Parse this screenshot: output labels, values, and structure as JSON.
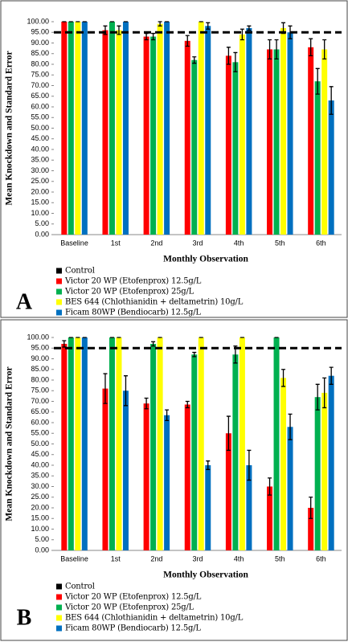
{
  "chart_data": [
    {
      "type": "bar",
      "panel_label": "A",
      "x_label": "Monthly Observation",
      "y_label": "Mean Knockdown and Standard Error",
      "categories": [
        "Baseline",
        "1st",
        "2nd",
        "3rd",
        "4th",
        "5th",
        "6th"
      ],
      "ylim": [
        0,
        100
      ],
      "yticks": [
        {
          "value": 0,
          "label": "0.00"
        },
        {
          "value": 5,
          "label": "5.00"
        },
        {
          "value": 10,
          "label": "10.00"
        },
        {
          "value": 15,
          "label": "15.00"
        },
        {
          "value": 20,
          "label": "20.00"
        },
        {
          "value": 25,
          "label": "25.00"
        },
        {
          "value": 30,
          "label": "30.00"
        },
        {
          "value": 35,
          "label": "35.00"
        },
        {
          "value": 40,
          "label": "40.00"
        },
        {
          "value": 45,
          "label": "45.00"
        },
        {
          "value": 50,
          "label": "50.00"
        },
        {
          "value": 55,
          "label": "55.00"
        },
        {
          "value": 60,
          "label": "60.00"
        },
        {
          "value": 65,
          "label": "65.00"
        },
        {
          "value": 70,
          "label": "70.00"
        },
        {
          "value": 75,
          "label": "75.00"
        },
        {
          "value": 80,
          "label": "80.00"
        },
        {
          "value": 85,
          "label": "85.00"
        },
        {
          "value": 90,
          "label": "90.00"
        },
        {
          "value": 95,
          "label": "95.00"
        },
        {
          "value": 100,
          "label": "100.00"
        }
      ],
      "hline": 95,
      "series": [
        {
          "name": "Control",
          "color": "#000000",
          "values": [
            null,
            null,
            null,
            null,
            null,
            null,
            null
          ]
        },
        {
          "name": "Victor 20 WP (Etofenprox) 12.5g/L",
          "color": "#ff0000",
          "values": [
            100,
            96,
            93,
            91,
            84,
            87,
            88
          ],
          "errors": [
            0,
            2,
            1.5,
            2.5,
            4,
            4.5,
            4
          ]
        },
        {
          "name": "Victor 20 WP (Etofenprox) 25g/L",
          "color": "#00b050",
          "values": [
            100,
            100,
            93,
            82,
            81,
            87,
            72
          ],
          "errors": [
            0,
            0,
            1.5,
            1.5,
            4.5,
            4.5,
            6
          ]
        },
        {
          "name": "BES 644 (Chlothianidin + deltametrin) 10g/L",
          "color": "#ffff00",
          "values": [
            100,
            96,
            99,
            100,
            94,
            97,
            87
          ],
          "errors": [
            0,
            2,
            1,
            0,
            2.5,
            2.5,
            4.5
          ]
        },
        {
          "name": "Ficam 80WP (Bendiocarb) 12.5g/L",
          "color": "#0070c0",
          "values": [
            100,
            100,
            100,
            98,
            97,
            95,
            63
          ],
          "errors": [
            0,
            0,
            0,
            1.5,
            1,
            3,
            6.5
          ]
        }
      ]
    },
    {
      "type": "bar",
      "panel_label": "B",
      "x_label": "Monthly Observation",
      "y_label": "Mean Knockdown and Standard Error",
      "categories": [
        "Baseline",
        "1st",
        "2nd",
        "3rd",
        "4th",
        "5th",
        "6th"
      ],
      "ylim": [
        0,
        100
      ],
      "yticks": [
        {
          "value": 0,
          "label": "0.00"
        },
        {
          "value": 5,
          "label": "5.00"
        },
        {
          "value": 10,
          "label": "10.00"
        },
        {
          "value": 15,
          "label": "15.00"
        },
        {
          "value": 20,
          "label": "20.00"
        },
        {
          "value": 25,
          "label": "25.00"
        },
        {
          "value": 30,
          "label": "30.00"
        },
        {
          "value": 35,
          "label": "35.00"
        },
        {
          "value": 40,
          "label": "40.00"
        },
        {
          "value": 45,
          "label": "45.00"
        },
        {
          "value": 50,
          "label": "50.00"
        },
        {
          "value": 55,
          "label": "55.00"
        },
        {
          "value": 60,
          "label": "60.00"
        },
        {
          "value": 65,
          "label": "65.00"
        },
        {
          "value": 70,
          "label": "70.00"
        },
        {
          "value": 75,
          "label": "75.00"
        },
        {
          "value": 80,
          "label": "80.00"
        },
        {
          "value": 85,
          "label": "85.00"
        },
        {
          "value": 90,
          "label": "90.00"
        },
        {
          "value": 95,
          "label": "95.00"
        },
        {
          "value": 100,
          "label": "100.00"
        }
      ],
      "hline": 95,
      "series": [
        {
          "name": "Control",
          "color": "#000000",
          "values": [
            null,
            null,
            null,
            null,
            null,
            null,
            null
          ]
        },
        {
          "name": "Victor 20 WP (Etofenprox) 12.5g/L",
          "color": "#ff0000",
          "values": [
            97,
            76,
            69,
            68.5,
            55,
            30,
            20
          ],
          "errors": [
            1.5,
            7,
            2.5,
            1.5,
            8,
            4,
            5
          ]
        },
        {
          "name": "Victor 20 WP (Etofenprox) 25g/L",
          "color": "#00b050",
          "values": [
            100,
            100,
            97,
            92,
            92,
            100,
            72
          ],
          "errors": [
            0,
            0,
            1,
            1,
            4,
            0,
            6
          ]
        },
        {
          "name": "BES 644 (Chlothianidin + deltametrin) 10g/L",
          "color": "#ffff00",
          "values": [
            100,
            100,
            100,
            100,
            100,
            81,
            74
          ],
          "errors": [
            0,
            0,
            0,
            0,
            0,
            4,
            7
          ]
        },
        {
          "name": "Ficam 80WP (Bendiocarb) 12.5g/L",
          "color": "#0070c0",
          "values": [
            100,
            75,
            63.5,
            40,
            40,
            58,
            82
          ],
          "errors": [
            0,
            7,
            2.5,
            2,
            7,
            6,
            4
          ]
        }
      ]
    }
  ]
}
